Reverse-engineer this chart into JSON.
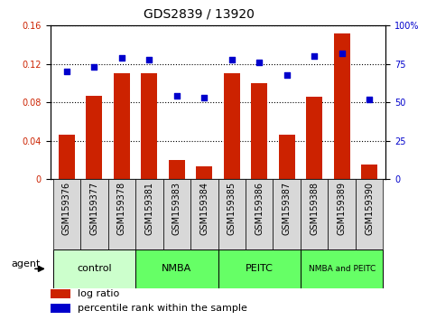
{
  "title": "GDS2839 / 13920",
  "samples": [
    "GSM159376",
    "GSM159377",
    "GSM159378",
    "GSM159381",
    "GSM159383",
    "GSM159384",
    "GSM159385",
    "GSM159386",
    "GSM159387",
    "GSM159388",
    "GSM159389",
    "GSM159390"
  ],
  "log_ratio": [
    0.046,
    0.087,
    0.11,
    0.11,
    0.02,
    0.013,
    0.11,
    0.1,
    0.046,
    0.086,
    0.152,
    0.015
  ],
  "percentile_rank": [
    70,
    73,
    79,
    78,
    54,
    53,
    78,
    76,
    68,
    80,
    82,
    52
  ],
  "bar_color": "#cc2200",
  "dot_color": "#0000cc",
  "ylim_left": [
    0,
    0.16
  ],
  "ylim_right": [
    0,
    100
  ],
  "yticks_left": [
    0,
    0.04,
    0.08,
    0.12,
    0.16
  ],
  "yticks_right": [
    0,
    25,
    50,
    75,
    100
  ],
  "ytick_labels_left": [
    "0",
    "0.04",
    "0.08",
    "0.12",
    "0.16"
  ],
  "ytick_labels_right": [
    "0",
    "25",
    "50",
    "75",
    "100%"
  ],
  "groups": [
    {
      "label": "control",
      "start": 0,
      "end": 3,
      "color": "#ccffcc"
    },
    {
      "label": "NMBA",
      "start": 3,
      "end": 6,
      "color": "#66ff66"
    },
    {
      "label": "PEITC",
      "start": 6,
      "end": 9,
      "color": "#66ff66"
    },
    {
      "label": "NMBA and PEITC",
      "start": 9,
      "end": 12,
      "color": "#66ff66"
    }
  ],
  "agent_label": "agent",
  "legend_bar_label": "log ratio",
  "legend_dot_label": "percentile rank within the sample",
  "title_fontsize": 10,
  "tick_fontsize": 7,
  "label_fontsize": 8,
  "group_fontsize": 8,
  "agent_fontsize": 8,
  "sample_box_color": "#d8d8d8",
  "nmba_peitc_fontsize": 6.5
}
